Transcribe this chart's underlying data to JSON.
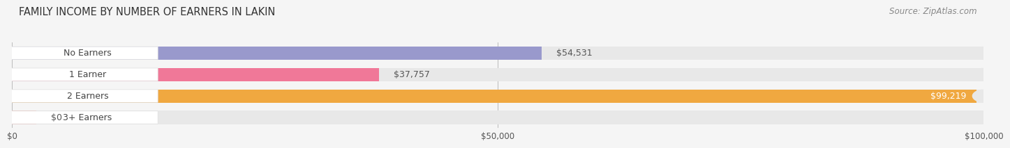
{
  "title": "FAMILY INCOME BY NUMBER OF EARNERS IN LAKIN",
  "source": "Source: ZipAtlas.com",
  "categories": [
    "No Earners",
    "1 Earner",
    "2 Earners",
    "3+ Earners"
  ],
  "values": [
    54531,
    37757,
    99219,
    0
  ],
  "bar_colors": [
    "#9999cc",
    "#f07898",
    "#f0a840",
    "#f0b0a8"
  ],
  "bar_bg_color": "#e8e8e8",
  "value_labels": [
    "$54,531",
    "$37,757",
    "$99,219",
    "$0"
  ],
  "value_label_inside": [
    false,
    false,
    true,
    false
  ],
  "xlim": [
    0,
    100000
  ],
  "xticks": [
    0,
    50000,
    100000
  ],
  "xtick_labels": [
    "$0",
    "$50,000",
    "$100,000"
  ],
  "title_fontsize": 10.5,
  "source_fontsize": 8.5,
  "bar_label_fontsize": 9,
  "value_label_fontsize": 9,
  "bg_color": "#f5f5f5"
}
